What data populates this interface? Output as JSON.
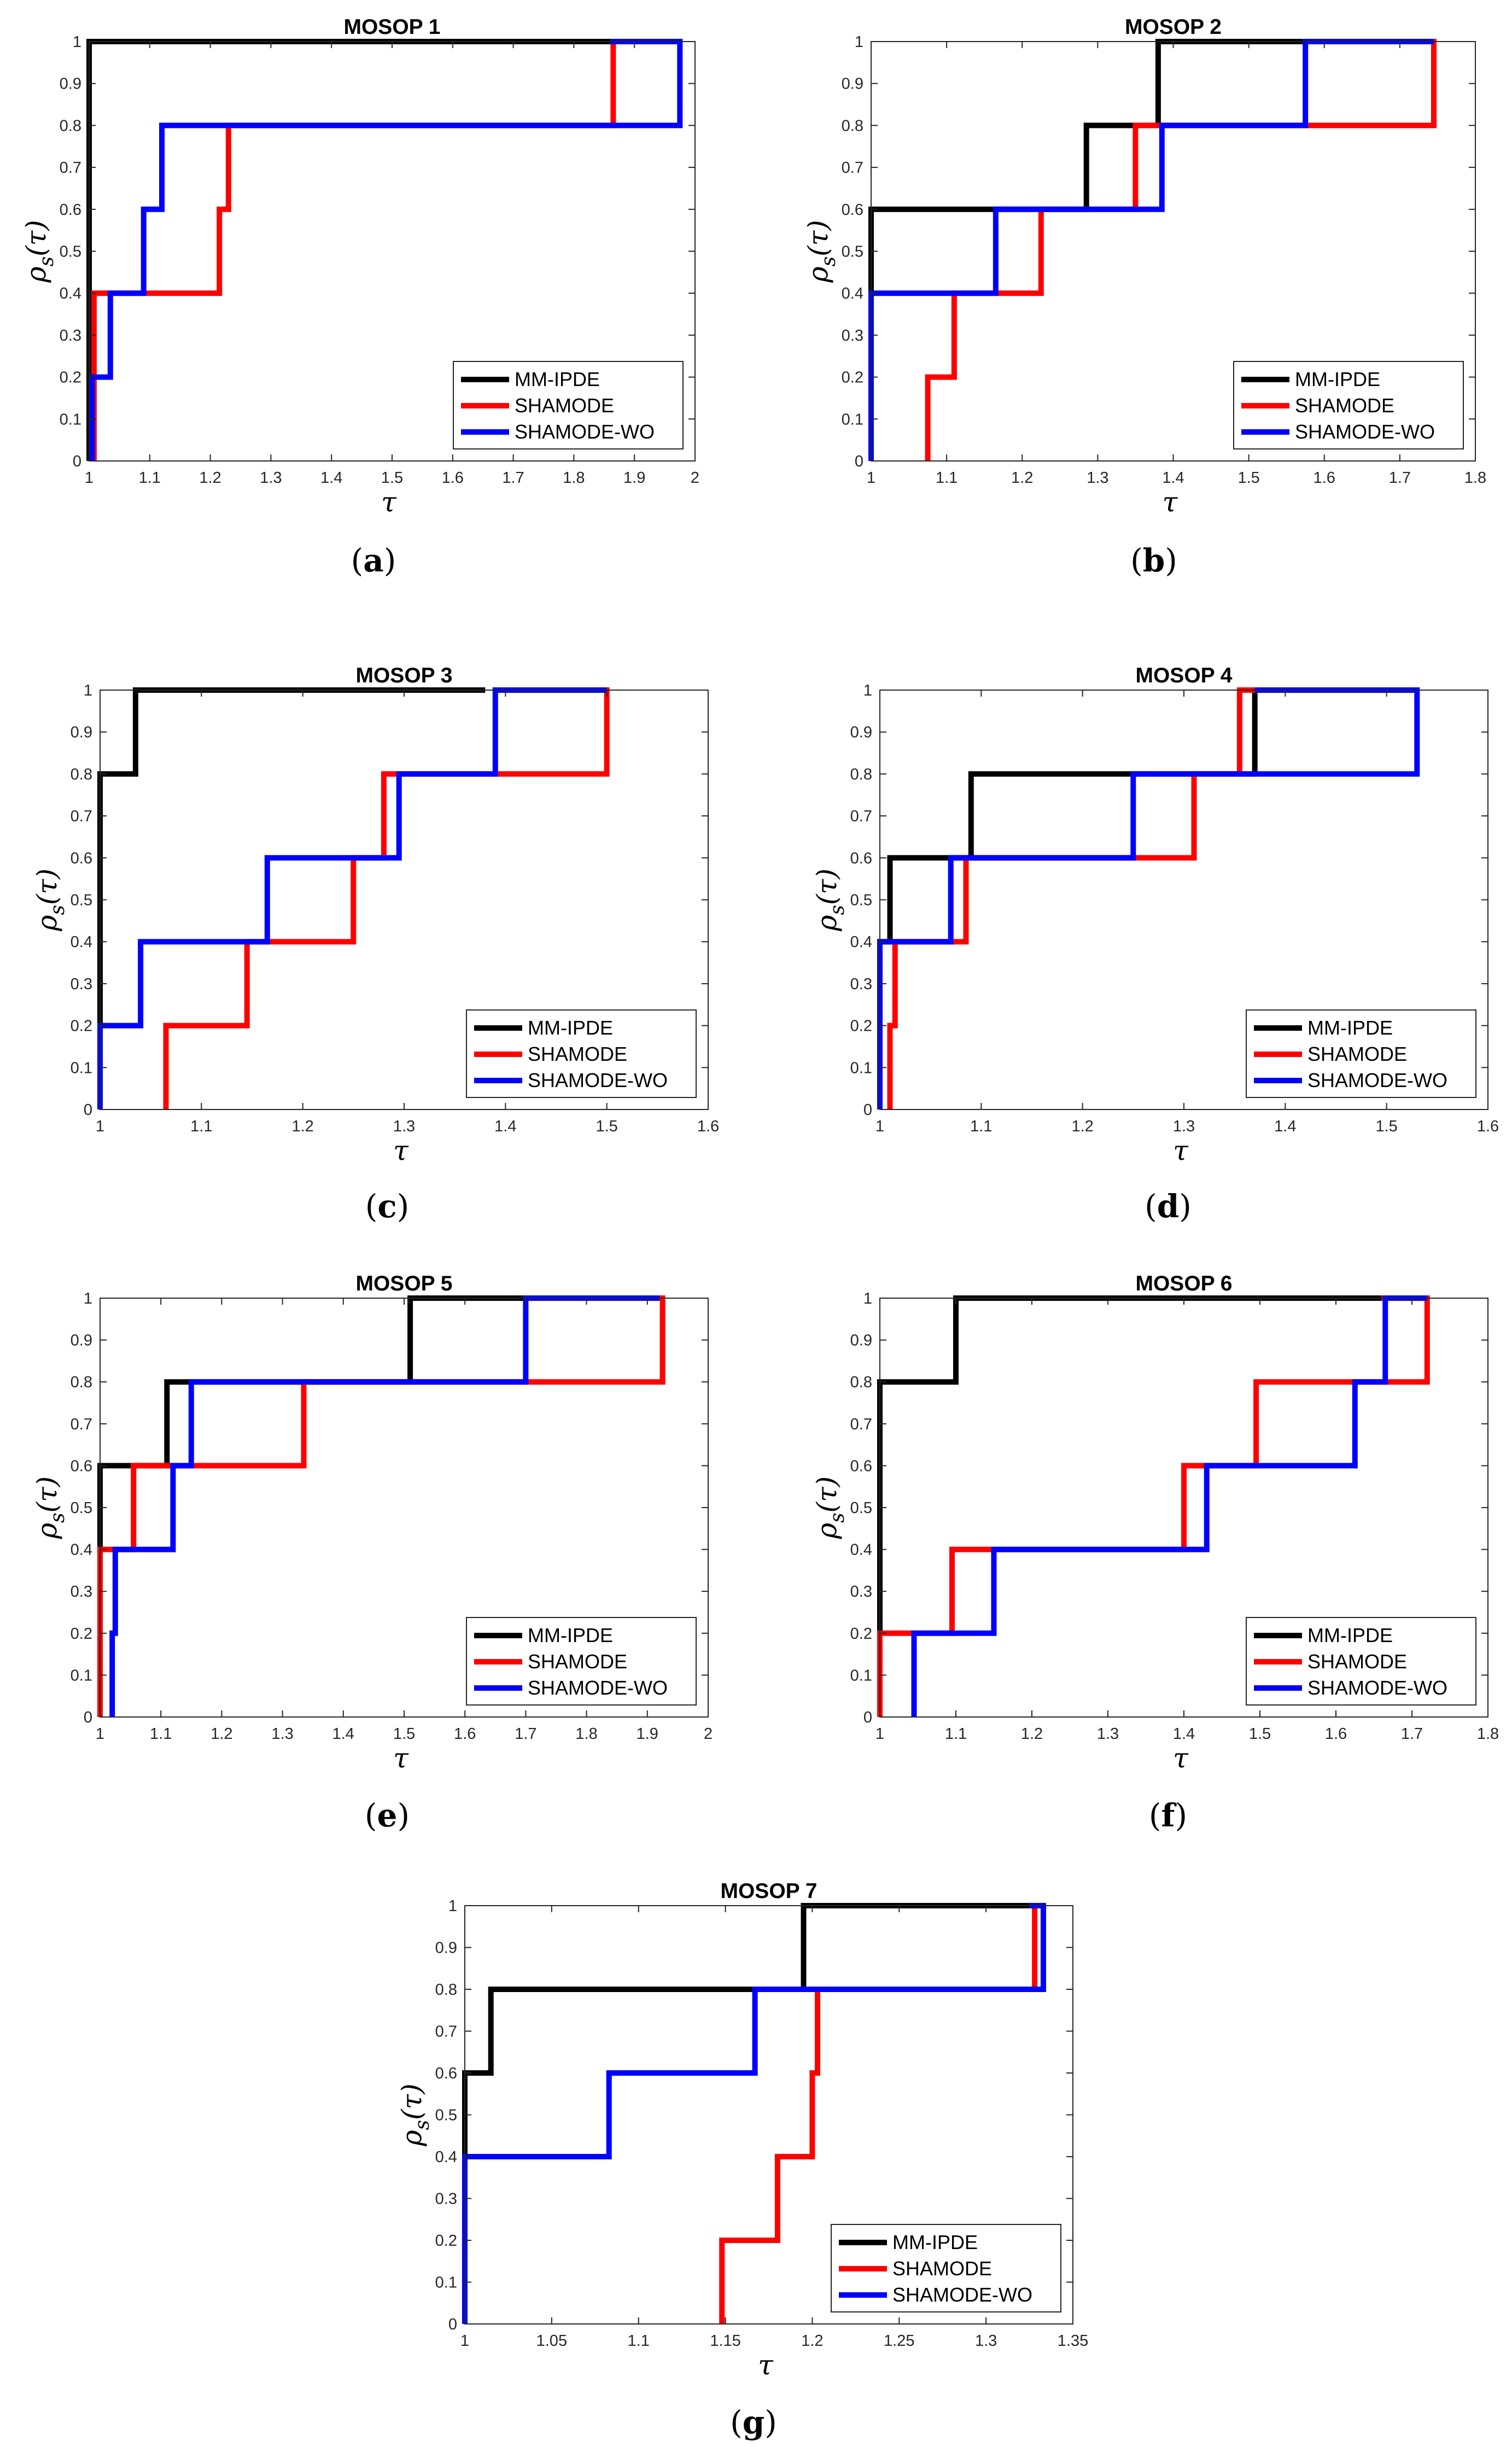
{
  "figure": {
    "legend": [
      "MM-IPDE",
      "SHAMODE",
      "SHAMODE-WO"
    ],
    "colors": {
      "MM-IPDE": "#000000",
      "SHAMODE": "#ff0000",
      "SHAMODE-WO": "#0000ff"
    },
    "xlabel": "τ",
    "ylabel_main": "ρ",
    "ylabel_sub": "s",
    "ylabel_arg": "(τ)"
  },
  "chart_data": [
    {
      "type": "line",
      "step": true,
      "caption_letter": "a",
      "title": "MOSOP 1",
      "xlim": [
        1,
        2
      ],
      "ylim": [
        0,
        1
      ],
      "xticks": [
        "1",
        "1.1",
        "1.2",
        "1.3",
        "1.4",
        "1.5",
        "1.6",
        "1.7",
        "1.8",
        "1.9",
        "2"
      ],
      "yticks": [
        "0",
        "0.1",
        "0.2",
        "0.3",
        "0.4",
        "0.5",
        "0.6",
        "0.7",
        "0.8",
        "0.9",
        "1"
      ],
      "series": [
        {
          "name": "MM-IPDE",
          "x": [
            1,
            1,
            1.86
          ],
          "y": [
            0,
            1,
            1
          ]
        },
        {
          "name": "SHAMODE",
          "x": [
            1.008,
            1.008,
            1.02,
            1.02,
            1.215,
            1.215,
            1.23,
            1.23,
            1.865,
            1.865,
            1.97
          ],
          "y": [
            0,
            0.4,
            0.4,
            0.4,
            0.4,
            0.6,
            0.6,
            0.8,
            0.8,
            1,
            1
          ]
        },
        {
          "name": "SHAMODE-WO",
          "x": [
            1.005,
            1.005,
            1.035,
            1.035,
            1.09,
            1.09,
            1.12,
            1.12,
            1.975,
            1.975,
            1.86
          ],
          "y": [
            0,
            0.2,
            0.2,
            0.4,
            0.4,
            0.6,
            0.6,
            0.8,
            0.8,
            1,
            1
          ]
        }
      ]
    },
    {
      "type": "line",
      "step": true,
      "caption_letter": "b",
      "title": "MOSOP 2",
      "xlim": [
        1,
        1.8
      ],
      "ylim": [
        0,
        1
      ],
      "xticks": [
        "1",
        "1.1",
        "1.2",
        "1.3",
        "1.4",
        "1.5",
        "1.6",
        "1.7",
        "1.8"
      ],
      "yticks": [
        "0",
        "0.1",
        "0.2",
        "0.3",
        "0.4",
        "0.5",
        "0.6",
        "0.7",
        "0.8",
        "0.9",
        "1"
      ],
      "series": [
        {
          "name": "MM-IPDE",
          "x": [
            1,
            1,
            1.285,
            1.285,
            1.38,
            1.38,
            1.575
          ],
          "y": [
            0,
            0.6,
            0.6,
            0.8,
            0.8,
            1,
            1
          ]
        },
        {
          "name": "SHAMODE",
          "x": [
            1.075,
            1.075,
            1.11,
            1.11,
            1.165,
            1.165,
            1.225,
            1.225,
            1.35,
            1.35,
            1.575,
            1.575,
            1.745,
            1.745,
            1.575
          ],
          "y": [
            0,
            0.2,
            0.2,
            0.4,
            0.4,
            0.4,
            0.4,
            0.6,
            0.6,
            0.8,
            0.8,
            0.8,
            0.8,
            1,
            1
          ]
        },
        {
          "name": "SHAMODE-WO",
          "x": [
            1,
            1,
            1.165,
            1.165,
            1.385,
            1.385,
            1.575,
            1.575,
            1.745
          ],
          "y": [
            0,
            0.4,
            0.4,
            0.6,
            0.6,
            0.8,
            0.8,
            1,
            1
          ]
        }
      ]
    },
    {
      "type": "line",
      "step": true,
      "caption_letter": "c",
      "title": "MOSOP 3",
      "xlim": [
        1,
        1.6
      ],
      "ylim": [
        0,
        1
      ],
      "xticks": [
        "1",
        "1.1",
        "1.2",
        "1.3",
        "1.4",
        "1.5",
        "1.6"
      ],
      "yticks": [
        "0",
        "0.1",
        "0.2",
        "0.3",
        "0.4",
        "0.5",
        "0.6",
        "0.7",
        "0.8",
        "0.9",
        "1"
      ],
      "series": [
        {
          "name": "MM-IPDE",
          "x": [
            1,
            1,
            1.035,
            1.035,
            1.38
          ],
          "y": [
            0,
            0.8,
            0.8,
            1,
            1
          ]
        },
        {
          "name": "SHAMODE",
          "x": [
            1.065,
            1.065,
            1.145,
            1.145,
            1.25,
            1.25,
            1.28,
            1.28,
            1.5,
            1.5,
            1.39
          ],
          "y": [
            0,
            0.2,
            0.2,
            0.4,
            0.4,
            0.6,
            0.6,
            0.8,
            0.8,
            1,
            1
          ]
        },
        {
          "name": "SHAMODE-WO",
          "x": [
            1,
            1,
            1.04,
            1.04,
            1.165,
            1.165,
            1.295,
            1.295,
            1.39,
            1.39,
            1.5
          ],
          "y": [
            0,
            0.2,
            0.2,
            0.4,
            0.4,
            0.6,
            0.6,
            0.8,
            0.8,
            1,
            1
          ]
        }
      ]
    },
    {
      "type": "line",
      "step": true,
      "caption_letter": "d",
      "title": "MOSOP 4",
      "xlim": [
        1,
        1.6
      ],
      "ylim": [
        0,
        1
      ],
      "xticks": [
        "1",
        "1.1",
        "1.2",
        "1.3",
        "1.4",
        "1.5",
        "1.6"
      ],
      "yticks": [
        "0",
        "0.1",
        "0.2",
        "0.3",
        "0.4",
        "0.5",
        "0.6",
        "0.7",
        "0.8",
        "0.9",
        "1"
      ],
      "series": [
        {
          "name": "MM-IPDE",
          "x": [
            1,
            1,
            1.01,
            1.01,
            1.09,
            1.09,
            1.37,
            1.37,
            1.53
          ],
          "y": [
            0,
            0.4,
            0.4,
            0.6,
            0.6,
            0.8,
            0.8,
            1,
            1
          ]
        },
        {
          "name": "SHAMODE",
          "x": [
            1.01,
            1.01,
            1.015,
            1.015,
            1.085,
            1.085,
            1.31,
            1.31,
            1.355,
            1.355,
            1.53
          ],
          "y": [
            0,
            0.2,
            0.2,
            0.4,
            0.4,
            0.6,
            0.6,
            0.8,
            0.8,
            1,
            1
          ]
        },
        {
          "name": "SHAMODE-WO",
          "x": [
            1,
            1,
            1.07,
            1.07,
            1.25,
            1.25,
            1.53,
            1.53,
            1.37
          ],
          "y": [
            0,
            0.4,
            0.4,
            0.6,
            0.6,
            0.8,
            0.8,
            1,
            1
          ]
        }
      ]
    },
    {
      "type": "line",
      "step": true,
      "caption_letter": "e",
      "title": "MOSOP 5",
      "xlim": [
        1,
        2
      ],
      "ylim": [
        0,
        1
      ],
      "xticks": [
        "1",
        "1.1",
        "1.2",
        "1.3",
        "1.4",
        "1.5",
        "1.6",
        "1.7",
        "1.8",
        "1.9",
        "2"
      ],
      "yticks": [
        "0",
        "0.1",
        "0.2",
        "0.3",
        "0.4",
        "0.5",
        "0.6",
        "0.7",
        "0.8",
        "0.9",
        "1"
      ],
      "series": [
        {
          "name": "MM-IPDE",
          "x": [
            1,
            1,
            1.11,
            1.11,
            1.51,
            1.51,
            1.7
          ],
          "y": [
            0,
            0.6,
            0.6,
            0.8,
            0.8,
            1,
            1
          ]
        },
        {
          "name": "SHAMODE",
          "x": [
            1,
            1,
            1.055,
            1.055,
            1.335,
            1.335,
            1.925,
            1.925,
            1.7
          ],
          "y": [
            0,
            0.4,
            0.4,
            0.6,
            0.6,
            0.8,
            0.8,
            1,
            1
          ]
        },
        {
          "name": "SHAMODE-WO",
          "x": [
            1.02,
            1.02,
            1.025,
            1.025,
            1.12,
            1.12,
            1.15,
            1.15,
            1.7,
            1.7,
            1.92
          ],
          "y": [
            0,
            0.2,
            0.2,
            0.4,
            0.4,
            0.6,
            0.6,
            0.8,
            0.8,
            1,
            1
          ]
        }
      ]
    },
    {
      "type": "line",
      "step": true,
      "caption_letter": "f",
      "title": "MOSOP 6",
      "xlim": [
        1,
        1.8
      ],
      "ylim": [
        0,
        1
      ],
      "xticks": [
        "1",
        "1.1",
        "1.2",
        "1.3",
        "1.4",
        "1.5",
        "1.6",
        "1.7",
        "1.8"
      ],
      "yticks": [
        "0",
        "0.1",
        "0.2",
        "0.3",
        "0.4",
        "0.5",
        "0.6",
        "0.7",
        "0.8",
        "0.9",
        "1"
      ],
      "series": [
        {
          "name": "MM-IPDE",
          "x": [
            1,
            1,
            1.1,
            1.1,
            1.66
          ],
          "y": [
            0,
            0.8,
            0.8,
            1,
            1
          ]
        },
        {
          "name": "SHAMODE",
          "x": [
            1,
            1,
            1.095,
            1.095,
            1.4,
            1.4,
            1.495,
            1.495,
            1.72,
            1.72,
            1.66
          ],
          "y": [
            0,
            0.2,
            0.2,
            0.4,
            0.4,
            0.6,
            0.6,
            0.8,
            0.8,
            1,
            1
          ]
        },
        {
          "name": "SHAMODE-WO",
          "x": [
            1.045,
            1.045,
            1.15,
            1.15,
            1.43,
            1.43,
            1.625,
            1.625,
            1.665,
            1.665,
            1.72
          ],
          "y": [
            0,
            0.2,
            0.2,
            0.4,
            0.4,
            0.6,
            0.6,
            0.8,
            0.8,
            1,
            1
          ]
        }
      ]
    },
    {
      "type": "line",
      "step": true,
      "caption_letter": "g",
      "title": "MOSOP 7",
      "xlim": [
        1,
        1.35
      ],
      "ylim": [
        0,
        1
      ],
      "xticks": [
        "1",
        "1.05",
        "1.1",
        "1.15",
        "1.2",
        "1.25",
        "1.3",
        "1.35"
      ],
      "yticks": [
        "0",
        "0.1",
        "0.2",
        "0.3",
        "0.4",
        "0.5",
        "0.6",
        "0.7",
        "0.8",
        "0.9",
        "1"
      ],
      "series": [
        {
          "name": "MM-IPDE",
          "x": [
            1,
            1,
            1.015,
            1.015,
            1.195,
            1.195,
            1.325
          ],
          "y": [
            0,
            0.6,
            0.6,
            0.8,
            0.8,
            1,
            1
          ]
        },
        {
          "name": "SHAMODE",
          "x": [
            1.148,
            1.148,
            1.18,
            1.18,
            1.2,
            1.2,
            1.203,
            1.203,
            1.328,
            1.328,
            1.33
          ],
          "y": [
            0,
            0.2,
            0.2,
            0.4,
            0.4,
            0.6,
            0.6,
            0.8,
            0.8,
            1,
            1
          ]
        },
        {
          "name": "SHAMODE-WO",
          "x": [
            1,
            1,
            1.083,
            1.083,
            1.167,
            1.167,
            1.333,
            1.333,
            1.325
          ],
          "y": [
            0,
            0.4,
            0.4,
            0.6,
            0.6,
            0.8,
            0.8,
            1,
            1
          ]
        }
      ]
    }
  ]
}
